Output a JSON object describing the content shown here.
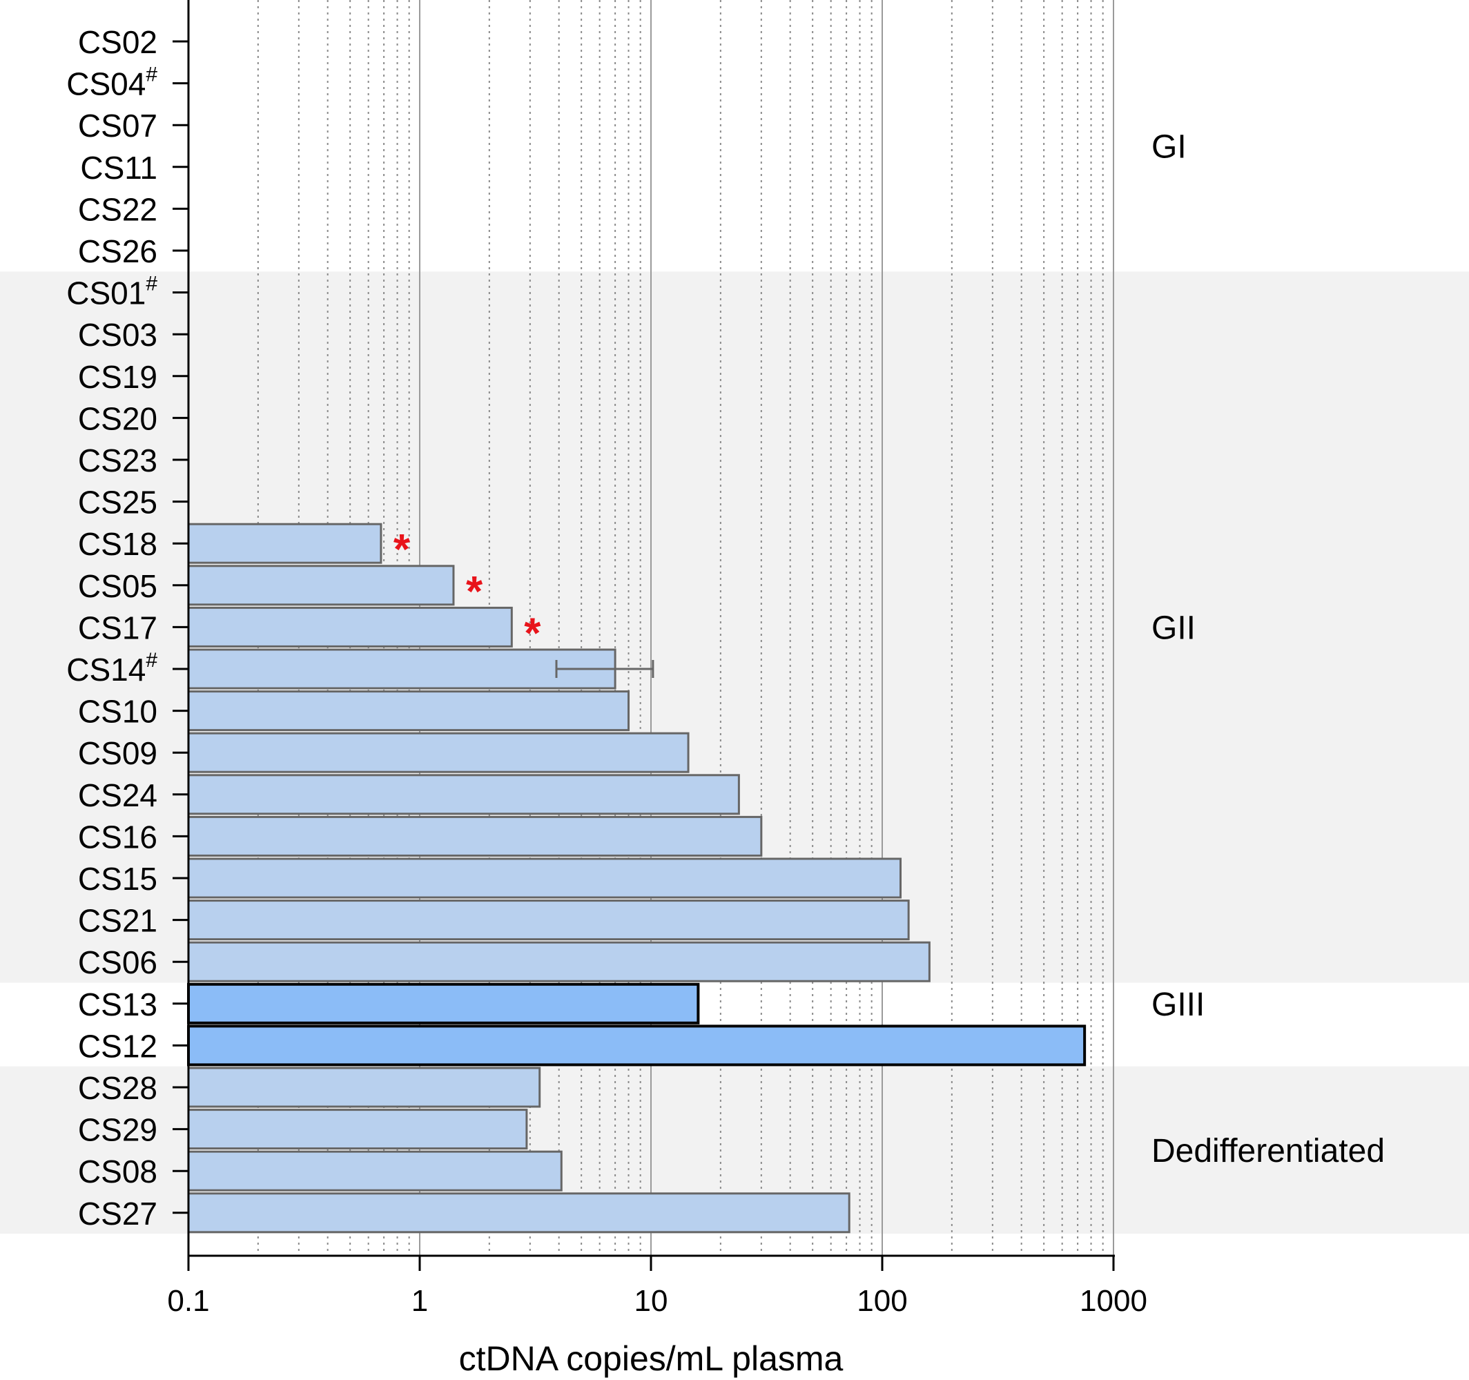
{
  "chart_data": {
    "type": "bar",
    "orientation": "horizontal",
    "xscale": "log",
    "xlim": [
      0.1,
      1000
    ],
    "xlabel": "ctDNA copies/mL plasma",
    "x_ticks": [
      "0.1",
      "1",
      "10",
      "100",
      "1000"
    ],
    "grid": "vertical, solid at decades, dotted at minor ticks",
    "categories": [
      {
        "label": "CS02",
        "suffix": ""
      },
      {
        "label": "CS04",
        "suffix": "#"
      },
      {
        "label": "CS07",
        "suffix": ""
      },
      {
        "label": "CS11",
        "suffix": ""
      },
      {
        "label": "CS22",
        "suffix": ""
      },
      {
        "label": "CS26",
        "suffix": ""
      },
      {
        "label": "CS01",
        "suffix": "#"
      },
      {
        "label": "CS03",
        "suffix": ""
      },
      {
        "label": "CS19",
        "suffix": ""
      },
      {
        "label": "CS20",
        "suffix": ""
      },
      {
        "label": "CS23",
        "suffix": ""
      },
      {
        "label": "CS25",
        "suffix": ""
      },
      {
        "label": "CS18",
        "suffix": ""
      },
      {
        "label": "CS05",
        "suffix": ""
      },
      {
        "label": "CS17",
        "suffix": ""
      },
      {
        "label": "CS14",
        "suffix": "#"
      },
      {
        "label": "CS10",
        "suffix": ""
      },
      {
        "label": "CS09",
        "suffix": ""
      },
      {
        "label": "CS24",
        "suffix": ""
      },
      {
        "label": "CS16",
        "suffix": ""
      },
      {
        "label": "CS15",
        "suffix": ""
      },
      {
        "label": "CS21",
        "suffix": ""
      },
      {
        "label": "CS06",
        "suffix": ""
      },
      {
        "label": "CS13",
        "suffix": ""
      },
      {
        "label": "CS12",
        "suffix": ""
      },
      {
        "label": "CS28",
        "suffix": ""
      },
      {
        "label": "CS29",
        "suffix": ""
      },
      {
        "label": "CS08",
        "suffix": ""
      },
      {
        "label": "CS27",
        "suffix": ""
      }
    ],
    "values": [
      null,
      null,
      null,
      null,
      null,
      null,
      null,
      null,
      null,
      null,
      null,
      null,
      0.68,
      1.4,
      2.5,
      7,
      8,
      14.5,
      24,
      30,
      120,
      130,
      160,
      16,
      750,
      3.3,
      2.9,
      4.1,
      72
    ],
    "error_bars": [
      {
        "category": "CS14",
        "low": 3.9,
        "high": 10.2
      }
    ],
    "asterisks": {
      "label": "*",
      "color": "#e8141b",
      "categories": [
        "CS18",
        "CS05",
        "CS17"
      ]
    },
    "groups": [
      {
        "name": "GI",
        "first": 0,
        "last": 5,
        "shaded": false
      },
      {
        "name": "GII",
        "first": 6,
        "last": 22,
        "shaded": true
      },
      {
        "name": "GIII",
        "first": 23,
        "last": 24,
        "shaded": false,
        "label_row": 23
      },
      {
        "name": "Dedifferentiated",
        "first": 25,
        "last": 28,
        "shaded": true
      }
    ],
    "colors": {
      "bar_fill": "#b8d0ee",
      "bar_stroke": "#666666",
      "giii_fill": "#8bbcf7",
      "giii_stroke": "#000000",
      "shade": "#f2f2f2",
      "error_bar": "#666666"
    }
  }
}
